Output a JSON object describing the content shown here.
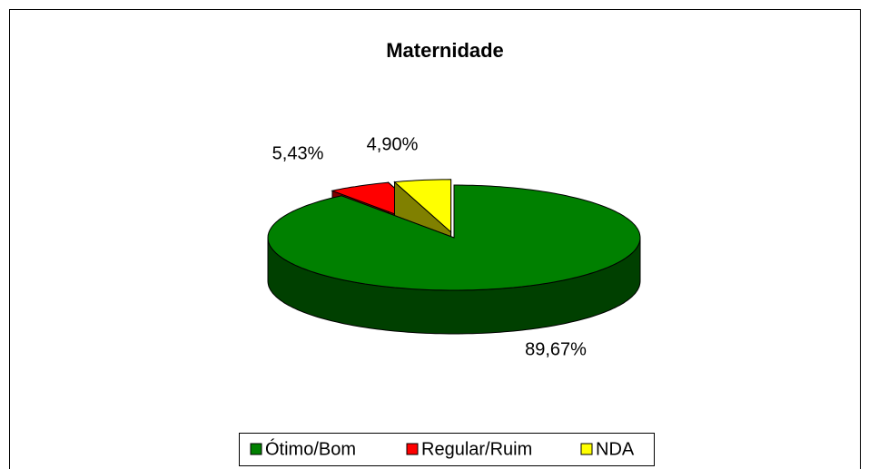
{
  "chart_data": {
    "type": "pie",
    "title": "Maternidade",
    "categories": [
      "Ótimo/Bom",
      "Regular/Ruim",
      "NDA"
    ],
    "values": [
      89.67,
      5.43,
      4.9
    ],
    "value_labels": [
      "89,67%",
      "5,43%",
      "4,90%"
    ],
    "colors": [
      "#008000",
      "#ff0000",
      "#ffff00"
    ],
    "legend": "bottom"
  }
}
